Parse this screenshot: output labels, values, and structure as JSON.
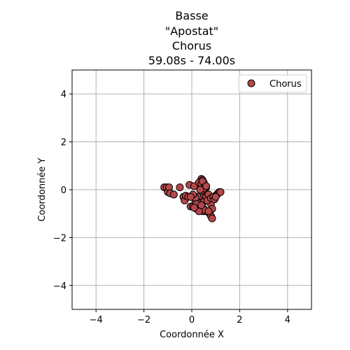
{
  "chart_data": {
    "type": "scatter",
    "title_lines": [
      "Basse",
      "\"Apostat\"",
      "Chorus",
      "59.08s - 74.00s"
    ],
    "xlabel": "Coordonnée X",
    "ylabel": "Coordonnée Y",
    "xlim": [
      -5,
      5
    ],
    "ylim": [
      -5,
      5
    ],
    "xticks": [
      -4,
      -2,
      0,
      2,
      4
    ],
    "yticks": [
      -4,
      -2,
      0,
      2,
      4
    ],
    "xtick_labels": [
      "−4",
      "−2",
      "0",
      "2",
      "4"
    ],
    "ytick_labels": [
      "−4",
      "−2",
      "0",
      "2",
      "4"
    ],
    "grid": true,
    "legend_position": "top-right",
    "series": [
      {
        "name": "Chorus",
        "color": "#b5484b",
        "edge_color": "#000000",
        "x": [
          -1.15,
          -1.05,
          -1.0,
          -0.95,
          -0.9,
          -0.75,
          -0.5,
          -0.35,
          -0.3,
          -0.25,
          -0.15,
          -0.1,
          -0.05,
          0.05,
          0.1,
          0.15,
          0.2,
          0.25,
          0.3,
          0.35,
          0.4,
          0.45,
          0.5,
          0.5,
          0.5,
          0.55,
          0.6,
          0.65,
          0.7,
          0.75,
          0.8,
          0.85,
          0.9,
          0.95,
          1.0,
          1.05,
          1.1,
          1.15,
          1.2,
          0.3,
          0.4,
          0.45,
          0.55,
          0.6,
          0.7,
          0.75,
          0.8,
          0.85,
          0.35,
          0.5,
          0.25,
          0.15,
          0.05,
          -0.05,
          0.4,
          0.6,
          0.65,
          0.7,
          0.8,
          0.9,
          0.95,
          1.0,
          0.45,
          0.55,
          0.3,
          0.2,
          0.1,
          0.5,
          0.6,
          0.7,
          0.4,
          0.35
        ],
        "y": [
          0.1,
          0.1,
          -0.1,
          0.1,
          -0.15,
          -0.2,
          0.1,
          -0.3,
          -0.45,
          -0.25,
          -0.3,
          0.2,
          -0.7,
          -0.7,
          0.15,
          -0.5,
          -0.8,
          -0.3,
          -0.6,
          -0.25,
          0.45,
          0.4,
          0.3,
          -0.2,
          -0.5,
          -0.9,
          0.1,
          -0.3,
          -0.4,
          -1.0,
          -1.1,
          -1.2,
          -0.3,
          -0.35,
          -0.25,
          -0.2,
          -0.15,
          -0.1,
          -0.1,
          0.3,
          0.25,
          0.35,
          -0.1,
          -0.15,
          -0.4,
          -0.5,
          -0.6,
          -0.8,
          -0.75,
          -0.8,
          -0.55,
          -0.35,
          -0.2,
          -0.3,
          -0.05,
          -0.3,
          -0.45,
          -0.2,
          -0.35,
          -0.3,
          -0.4,
          -0.3,
          -0.9,
          -0.85,
          -0.9,
          -0.6,
          -0.75,
          0.05,
          0.15,
          -0.9,
          -0.65,
          0.0
        ]
      }
    ]
  }
}
